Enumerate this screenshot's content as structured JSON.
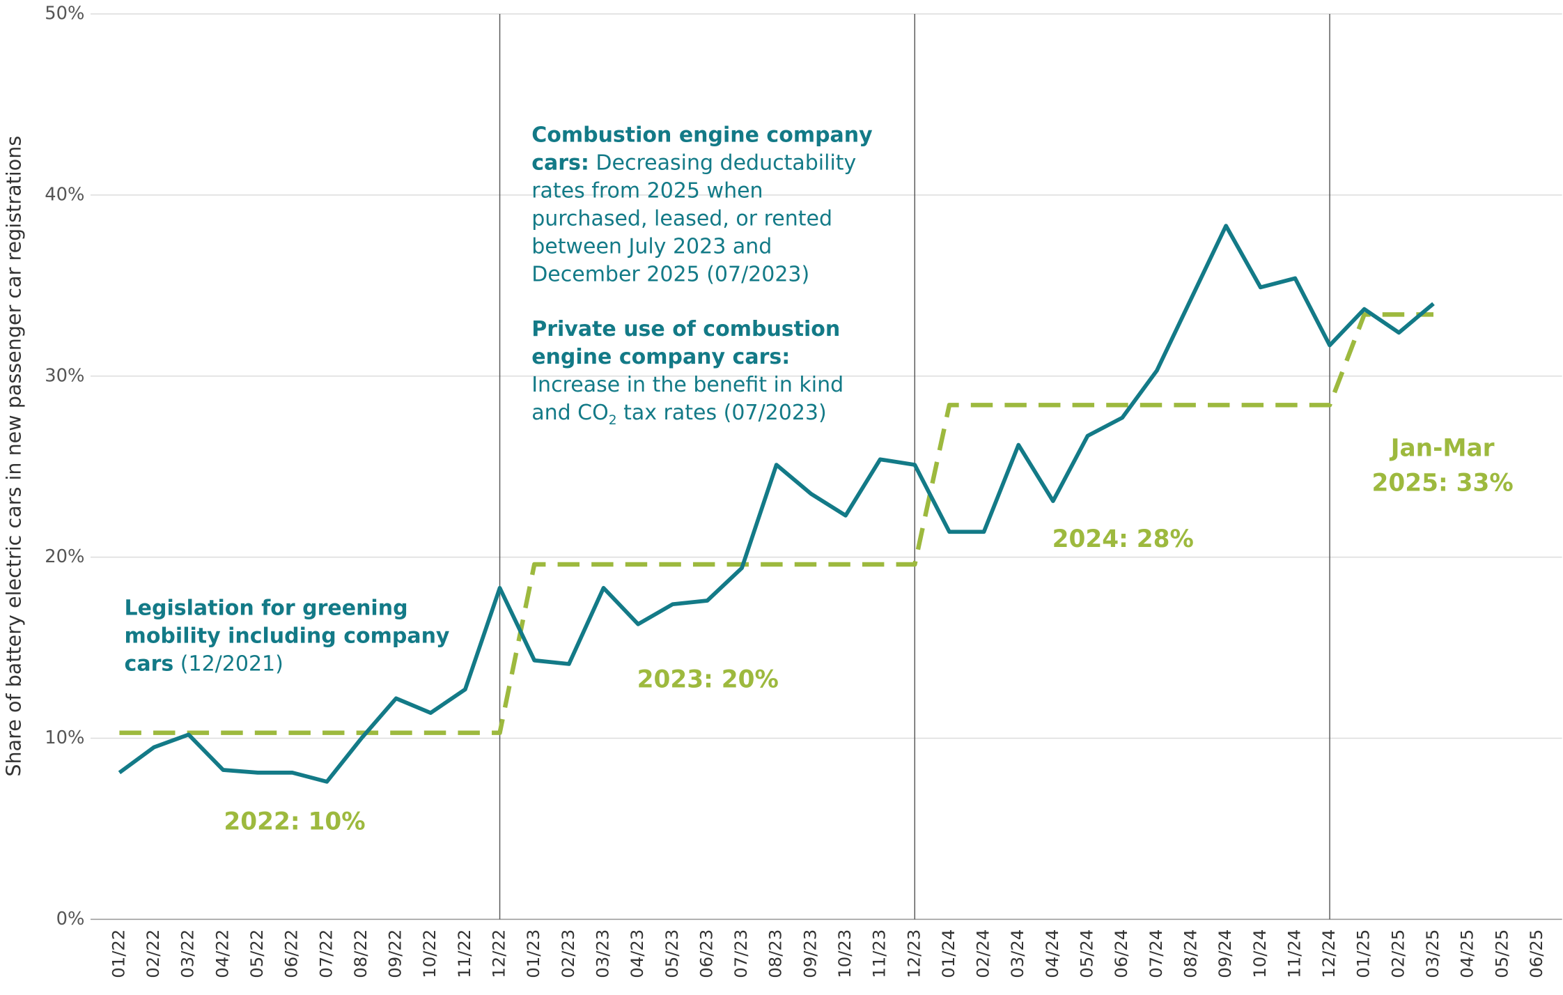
{
  "chart_data": {
    "type": "line",
    "y_label": "Share of battery electric cars in new passenger car registrations",
    "categories": [
      "01/22",
      "02/22",
      "03/22",
      "04/22",
      "05/22",
      "06/22",
      "07/22",
      "08/22",
      "09/22",
      "10/22",
      "11/22",
      "12/22",
      "01/23",
      "02/23",
      "03/23",
      "04/23",
      "05/23",
      "06/23",
      "07/23",
      "08/23",
      "09/23",
      "10/23",
      "11/23",
      "12/23",
      "01/24",
      "02/24",
      "03/24",
      "04/24",
      "05/24",
      "06/24",
      "07/24",
      "08/24",
      "09/24",
      "10/24",
      "11/24",
      "12/24",
      "01/25",
      "02/25",
      "03/25",
      "04/25",
      "05/25",
      "06/25"
    ],
    "series": [
      {
        "color": "#137a87",
        "style": "solid",
        "values": [
          8.1,
          9.5,
          10.2,
          8.25,
          8.1,
          8.1,
          7.6,
          10.0,
          12.2,
          11.4,
          12.7,
          18.3,
          14.3,
          14.1,
          18.3,
          16.3,
          17.4,
          17.6,
          19.4,
          25.1,
          23.5,
          22.3,
          25.4,
          25.1,
          21.4,
          21.4,
          26.2,
          23.1,
          26.7,
          27.7,
          30.3,
          34.3,
          38.3,
          34.9,
          35.4,
          31.7,
          33.7,
          32.4,
          34.0,
          null,
          null,
          null
        ]
      },
      {
        "color": "#9db93e",
        "style": "dashed",
        "values": [
          10.3,
          10.3,
          10.3,
          10.3,
          10.3,
          10.3,
          10.3,
          10.3,
          10.3,
          10.3,
          10.3,
          10.3,
          19.6,
          19.6,
          19.6,
          19.6,
          19.6,
          19.6,
          19.6,
          19.6,
          19.6,
          19.6,
          19.6,
          19.6,
          28.4,
          28.4,
          28.4,
          28.4,
          28.4,
          28.4,
          28.4,
          28.4,
          28.4,
          28.4,
          28.4,
          28.4,
          33.4,
          33.4,
          33.4,
          null,
          null,
          null
        ]
      }
    ],
    "ylim": [
      0,
      50
    ],
    "yticks": [
      {
        "value": 0,
        "label": "0%"
      },
      {
        "value": 10,
        "label": "10%"
      },
      {
        "value": 20,
        "label": "20%"
      },
      {
        "value": 30,
        "label": "30%"
      },
      {
        "value": 40,
        "label": "40%"
      },
      {
        "value": 50,
        "label": "50%"
      }
    ],
    "grid": true,
    "event_lines": [
      "12/22",
      "12/23",
      "12/24"
    ],
    "annotations": [
      {
        "color": "#137a87",
        "lines": [
          [
            {
              "text": "Combustion engine company",
              "bold": true
            }
          ],
          [
            {
              "text": "cars:",
              "bold": true
            },
            {
              "text": " Decreasing deductability"
            }
          ],
          [
            {
              "text": "rates from 2025 when"
            }
          ],
          [
            {
              "text": "purchased, leased, or rented"
            }
          ],
          [
            {
              "text": "between July 2023 and"
            }
          ],
          [
            {
              "text": "December 2025 (07/2023)"
            }
          ]
        ]
      },
      {
        "color": "#137a87",
        "lines": [
          [
            {
              "text": "Private use of combustion",
              "bold": true
            }
          ],
          [
            {
              "text": "engine company cars:",
              "bold": true
            }
          ],
          [
            {
              "text": "Increase in the benefit in kind"
            }
          ],
          [
            {
              "text": "and CO"
            },
            {
              "text": "2",
              "sub": true
            },
            {
              "text": " tax rates (07/2023)"
            }
          ]
        ]
      },
      {
        "color": "#137a87",
        "lines": [
          [
            {
              "text": "Legislation for greening",
              "bold": true
            }
          ],
          [
            {
              "text": "mobility including company",
              "bold": true
            }
          ],
          [
            {
              "text": "cars",
              "bold": true
            },
            {
              "text": " (12/2021)"
            }
          ]
        ]
      },
      {
        "color": "#9db93e",
        "lines": [
          [
            {
              "text": "2022: 10%",
              "bold": true
            }
          ]
        ]
      },
      {
        "color": "#9db93e",
        "lines": [
          [
            {
              "text": "2023: 20%",
              "bold": true
            }
          ]
        ]
      },
      {
        "color": "#9db93e",
        "lines": [
          [
            {
              "text": "2024: 28%",
              "bold": true
            }
          ]
        ]
      },
      {
        "color": "#9db93e",
        "lines": [
          [
            {
              "text": "Jan-Mar",
              "bold": true
            }
          ],
          [
            {
              "text": "2025: 33%",
              "bold": true
            }
          ]
        ]
      }
    ]
  }
}
